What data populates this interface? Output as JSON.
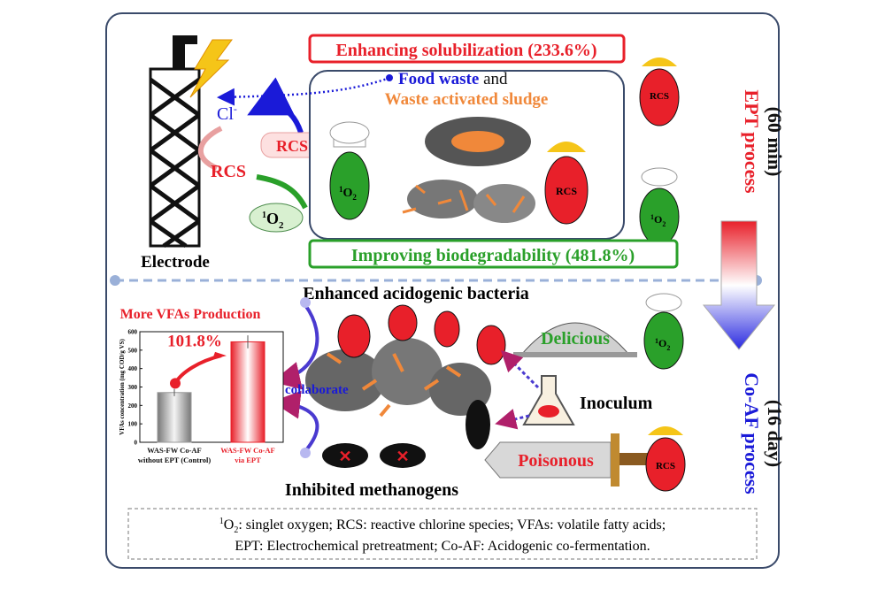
{
  "top": {
    "solubilization": "Enhancing solubilization (233.6%)",
    "biodegradability": "Improving biodegradability (481.8%)",
    "food_waste": "Food waste",
    "and": " and",
    "was": "Waste activated sludge",
    "electrode": "Electrode",
    "cl": "Cl",
    "cl_sup": "-",
    "rcs": "RCS",
    "o2_sup": "1",
    "o2": "O",
    "o2_sub": "2"
  },
  "side": {
    "ept": "EPT process",
    "ept_time": "(60 min)",
    "coaf": "Co-AF process",
    "coaf_time": "(16 day)"
  },
  "bottom": {
    "enhanced": "Enhanced acidogenic bacteria",
    "inhibited": "Inhibited methanogens",
    "collaborate": "collaborate",
    "delicious": "Delicious",
    "poisonous": "Poisonous",
    "inoculum": "Inoculum",
    "more_vfas": "More VFAs Production"
  },
  "chart_data": {
    "type": "bar",
    "ylabel": "VFAs concentration (mg COD/g VS)",
    "ylim": [
      0,
      600
    ],
    "yticks": [
      "0",
      "100",
      "200",
      "300",
      "400",
      "500",
      "600"
    ],
    "categories": [
      [
        "WAS-FW Co-AF",
        "without EPT (Control)"
      ],
      [
        "WAS-FW Co-AF",
        "via EPT"
      ]
    ],
    "values": [
      270,
      545
    ],
    "errors": [
      20,
      35
    ],
    "colors": [
      "#9a9a9a",
      "#e8202a"
    ],
    "annotation": "101.8%"
  },
  "legend": {
    "line1_sup": "1",
    "line1": "O",
    "line1_sub": "2",
    "line1_rest": ": singlet oxygen; RCS: reactive chlorine species; VFAs: volatile fatty acids;",
    "line2": "EPT: Electrochemical pretreatment; Co-AF: Acidogenic co-fermentation."
  },
  "colors": {
    "red": "#e8202a",
    "green": "#2aa02a",
    "blue": "#1a1ad8",
    "orange": "#f0883a",
    "frame": "#3a4a6a"
  }
}
